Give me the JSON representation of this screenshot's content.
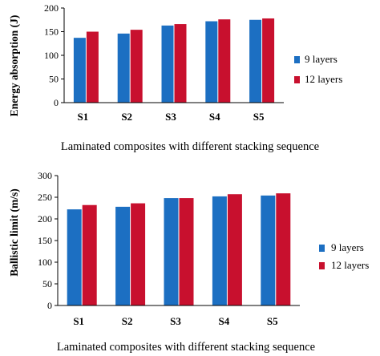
{
  "colors": {
    "series_a": "#1c6fc2",
    "series_b": "#c8102e",
    "axis": "#000000"
  },
  "chart_data": [
    {
      "type": "bar",
      "ylabel": "Energy absorption (J)",
      "xlabel": "Laminated composites with different stacking sequence",
      "categories": [
        "S1",
        "S2",
        "S3",
        "S4",
        "S5"
      ],
      "yticks": [
        0,
        50,
        100,
        150,
        200
      ],
      "ylim": [
        0,
        200
      ],
      "grid": false,
      "legend_position": "right",
      "series": [
        {
          "name": "9 layers",
          "values": [
            137,
            146,
            163,
            172,
            175
          ]
        },
        {
          "name": "12 layers",
          "values": [
            150,
            154,
            166,
            176,
            178
          ]
        }
      ]
    },
    {
      "type": "bar",
      "ylabel": "Ballistic limit (m/s)",
      "xlabel": "Laminated composites with different stacking sequence",
      "categories": [
        "S1",
        "S2",
        "S3",
        "S4",
        "S5"
      ],
      "yticks": [
        0,
        50,
        100,
        150,
        200,
        250,
        300
      ],
      "ylim": [
        0,
        300
      ],
      "grid": false,
      "legend_position": "right",
      "series": [
        {
          "name": "9 layers",
          "values": [
            222,
            228,
            248,
            252,
            254
          ]
        },
        {
          "name": "12 layers",
          "values": [
            232,
            236,
            248,
            257,
            259
          ]
        }
      ]
    }
  ]
}
